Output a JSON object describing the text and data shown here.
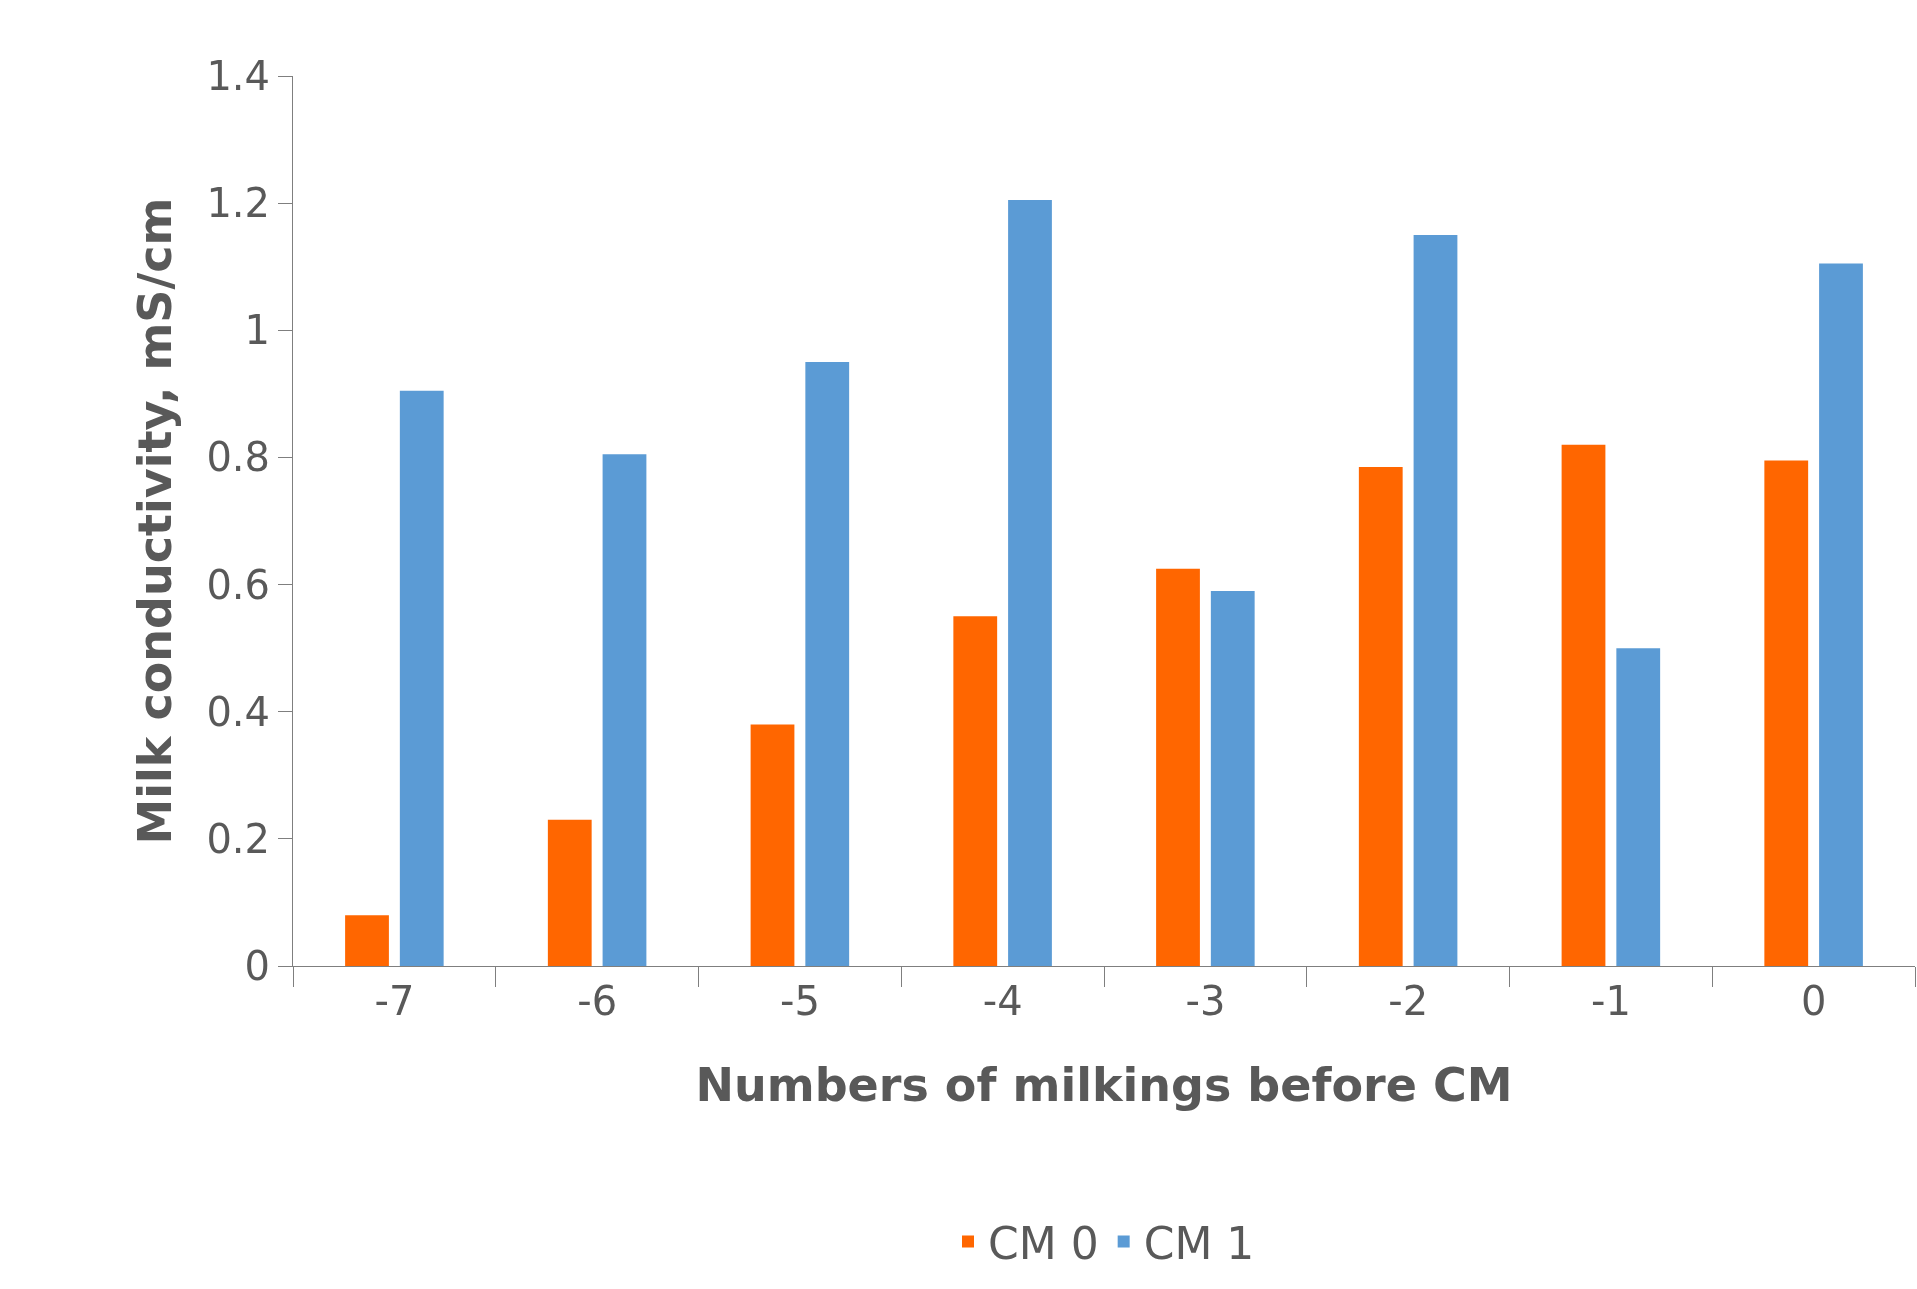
{
  "chart_data": {
    "type": "bar",
    "xlabel": "Numbers of milkings before CM",
    "ylabel": "Milk conductivity, mS/cm",
    "categories": [
      "-7",
      "-6",
      "-5",
      "-4",
      "-3",
      "-2",
      "-1",
      "0"
    ],
    "series": [
      {
        "name": "CM 0",
        "color": "#ff6600",
        "values": [
          0.08,
          0.23,
          0.38,
          0.55,
          0.625,
          0.785,
          0.82,
          0.795
        ]
      },
      {
        "name": "CM 1",
        "color": "#5b9bd5",
        "values": [
          0.905,
          0.805,
          0.95,
          1.205,
          0.59,
          1.15,
          0.5,
          1.105
        ]
      }
    ],
    "ylim": [
      0,
      1.4
    ],
    "yticks": [
      0,
      0.2,
      0.4,
      0.6,
      0.8,
      1,
      1.2,
      1.4
    ],
    "legend": "bottom"
  }
}
